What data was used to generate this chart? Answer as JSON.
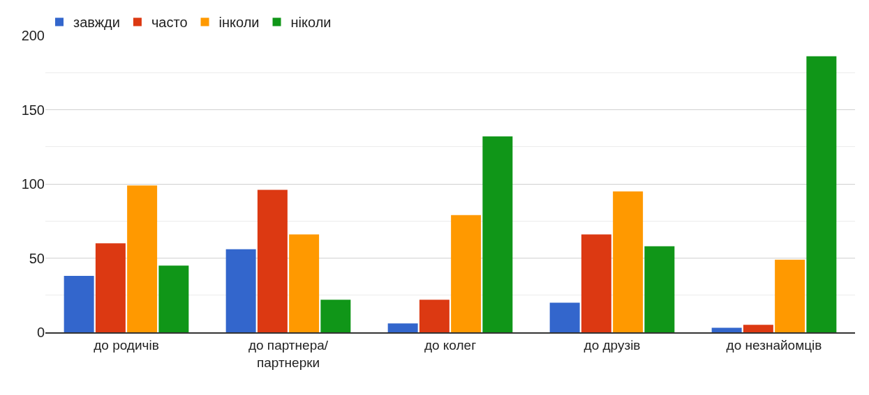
{
  "chart_data": {
    "type": "bar",
    "categories": [
      "до родичів",
      "до партнера/ партнерки",
      "до колег",
      "до друзів",
      "до незнайомців"
    ],
    "series": [
      {
        "name": "завжди",
        "color": "#3366cc",
        "values": [
          38,
          56,
          6,
          20,
          3
        ]
      },
      {
        "name": "часто",
        "color": "#dc3912",
        "values": [
          60,
          96,
          22,
          66,
          5
        ]
      },
      {
        "name": "інколи",
        "color": "#ff9900",
        "values": [
          99,
          66,
          79,
          95,
          49
        ]
      },
      {
        "name": "ніколи",
        "color": "#109618",
        "values": [
          45,
          22,
          132,
          58,
          186
        ]
      }
    ],
    "ylim": [
      0,
      200
    ],
    "yticks": [
      0,
      50,
      100,
      150,
      200
    ],
    "grid": "y",
    "legend": "top left"
  }
}
